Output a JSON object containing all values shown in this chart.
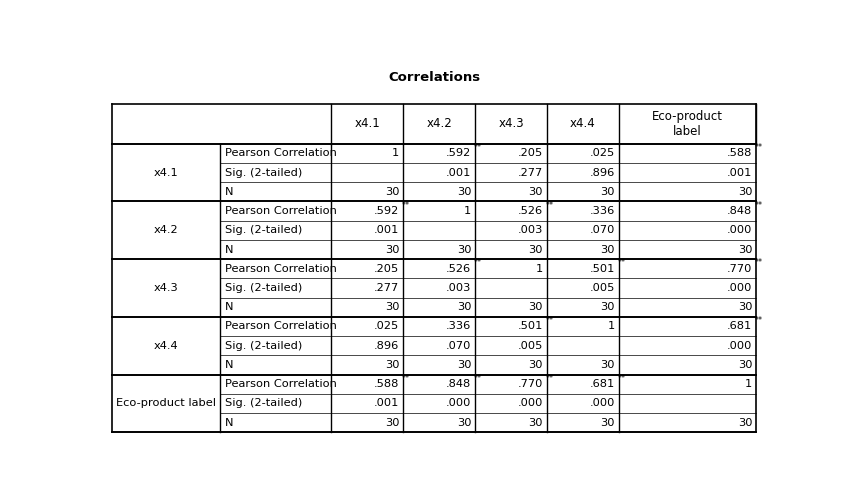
{
  "title": "Correlations",
  "title_fontsize": 9.5,
  "rows": [
    {
      "var": "x4.1",
      "metrics": [
        [
          "Pearson Correlation",
          "1",
          ".592**",
          ".205",
          ".025",
          ".588**"
        ],
        [
          "Sig. (2-tailed)",
          "",
          ".001",
          ".277",
          ".896",
          ".001"
        ],
        [
          "N",
          "30",
          "30",
          "30",
          "30",
          "30"
        ]
      ]
    },
    {
      "var": "x4.2",
      "metrics": [
        [
          "Pearson Correlation",
          ".592**",
          "1",
          ".526**",
          ".336",
          ".848**"
        ],
        [
          "Sig. (2-tailed)",
          ".001",
          "",
          ".003",
          ".070",
          ".000"
        ],
        [
          "N",
          "30",
          "30",
          "30",
          "30",
          "30"
        ]
      ]
    },
    {
      "var": "x4.3",
      "metrics": [
        [
          "Pearson Correlation",
          ".205",
          ".526**",
          "1",
          ".501**",
          ".770**"
        ],
        [
          "Sig. (2-tailed)",
          ".277",
          ".003",
          "",
          ".005",
          ".000"
        ],
        [
          "N",
          "30",
          "30",
          "30",
          "30",
          "30"
        ]
      ]
    },
    {
      "var": "x4.4",
      "metrics": [
        [
          "Pearson Correlation",
          ".025",
          ".336",
          ".501**",
          "1",
          ".681**"
        ],
        [
          "Sig. (2-tailed)",
          ".896",
          ".070",
          ".005",
          "",
          ".000"
        ],
        [
          "N",
          "30",
          "30",
          "30",
          "30",
          "30"
        ]
      ]
    },
    {
      "var": "Eco-product label",
      "metrics": [
        [
          "Pearson Correlation",
          ".588**",
          ".848**",
          ".770**",
          ".681**",
          "1"
        ],
        [
          "Sig. (2-tailed)",
          ".001",
          ".000",
          ".000",
          ".000",
          ""
        ],
        [
          "N",
          "30",
          "30",
          "30",
          "30",
          "30"
        ]
      ]
    }
  ],
  "col_headers": [
    "x4.1",
    "x4.2",
    "x4.3",
    "x4.4",
    "Eco-product\nlabel"
  ],
  "bg_color": "#ffffff",
  "line_color": "#000000",
  "text_color": "#000000",
  "font_size": 8.2,
  "header_font_size": 8.5
}
